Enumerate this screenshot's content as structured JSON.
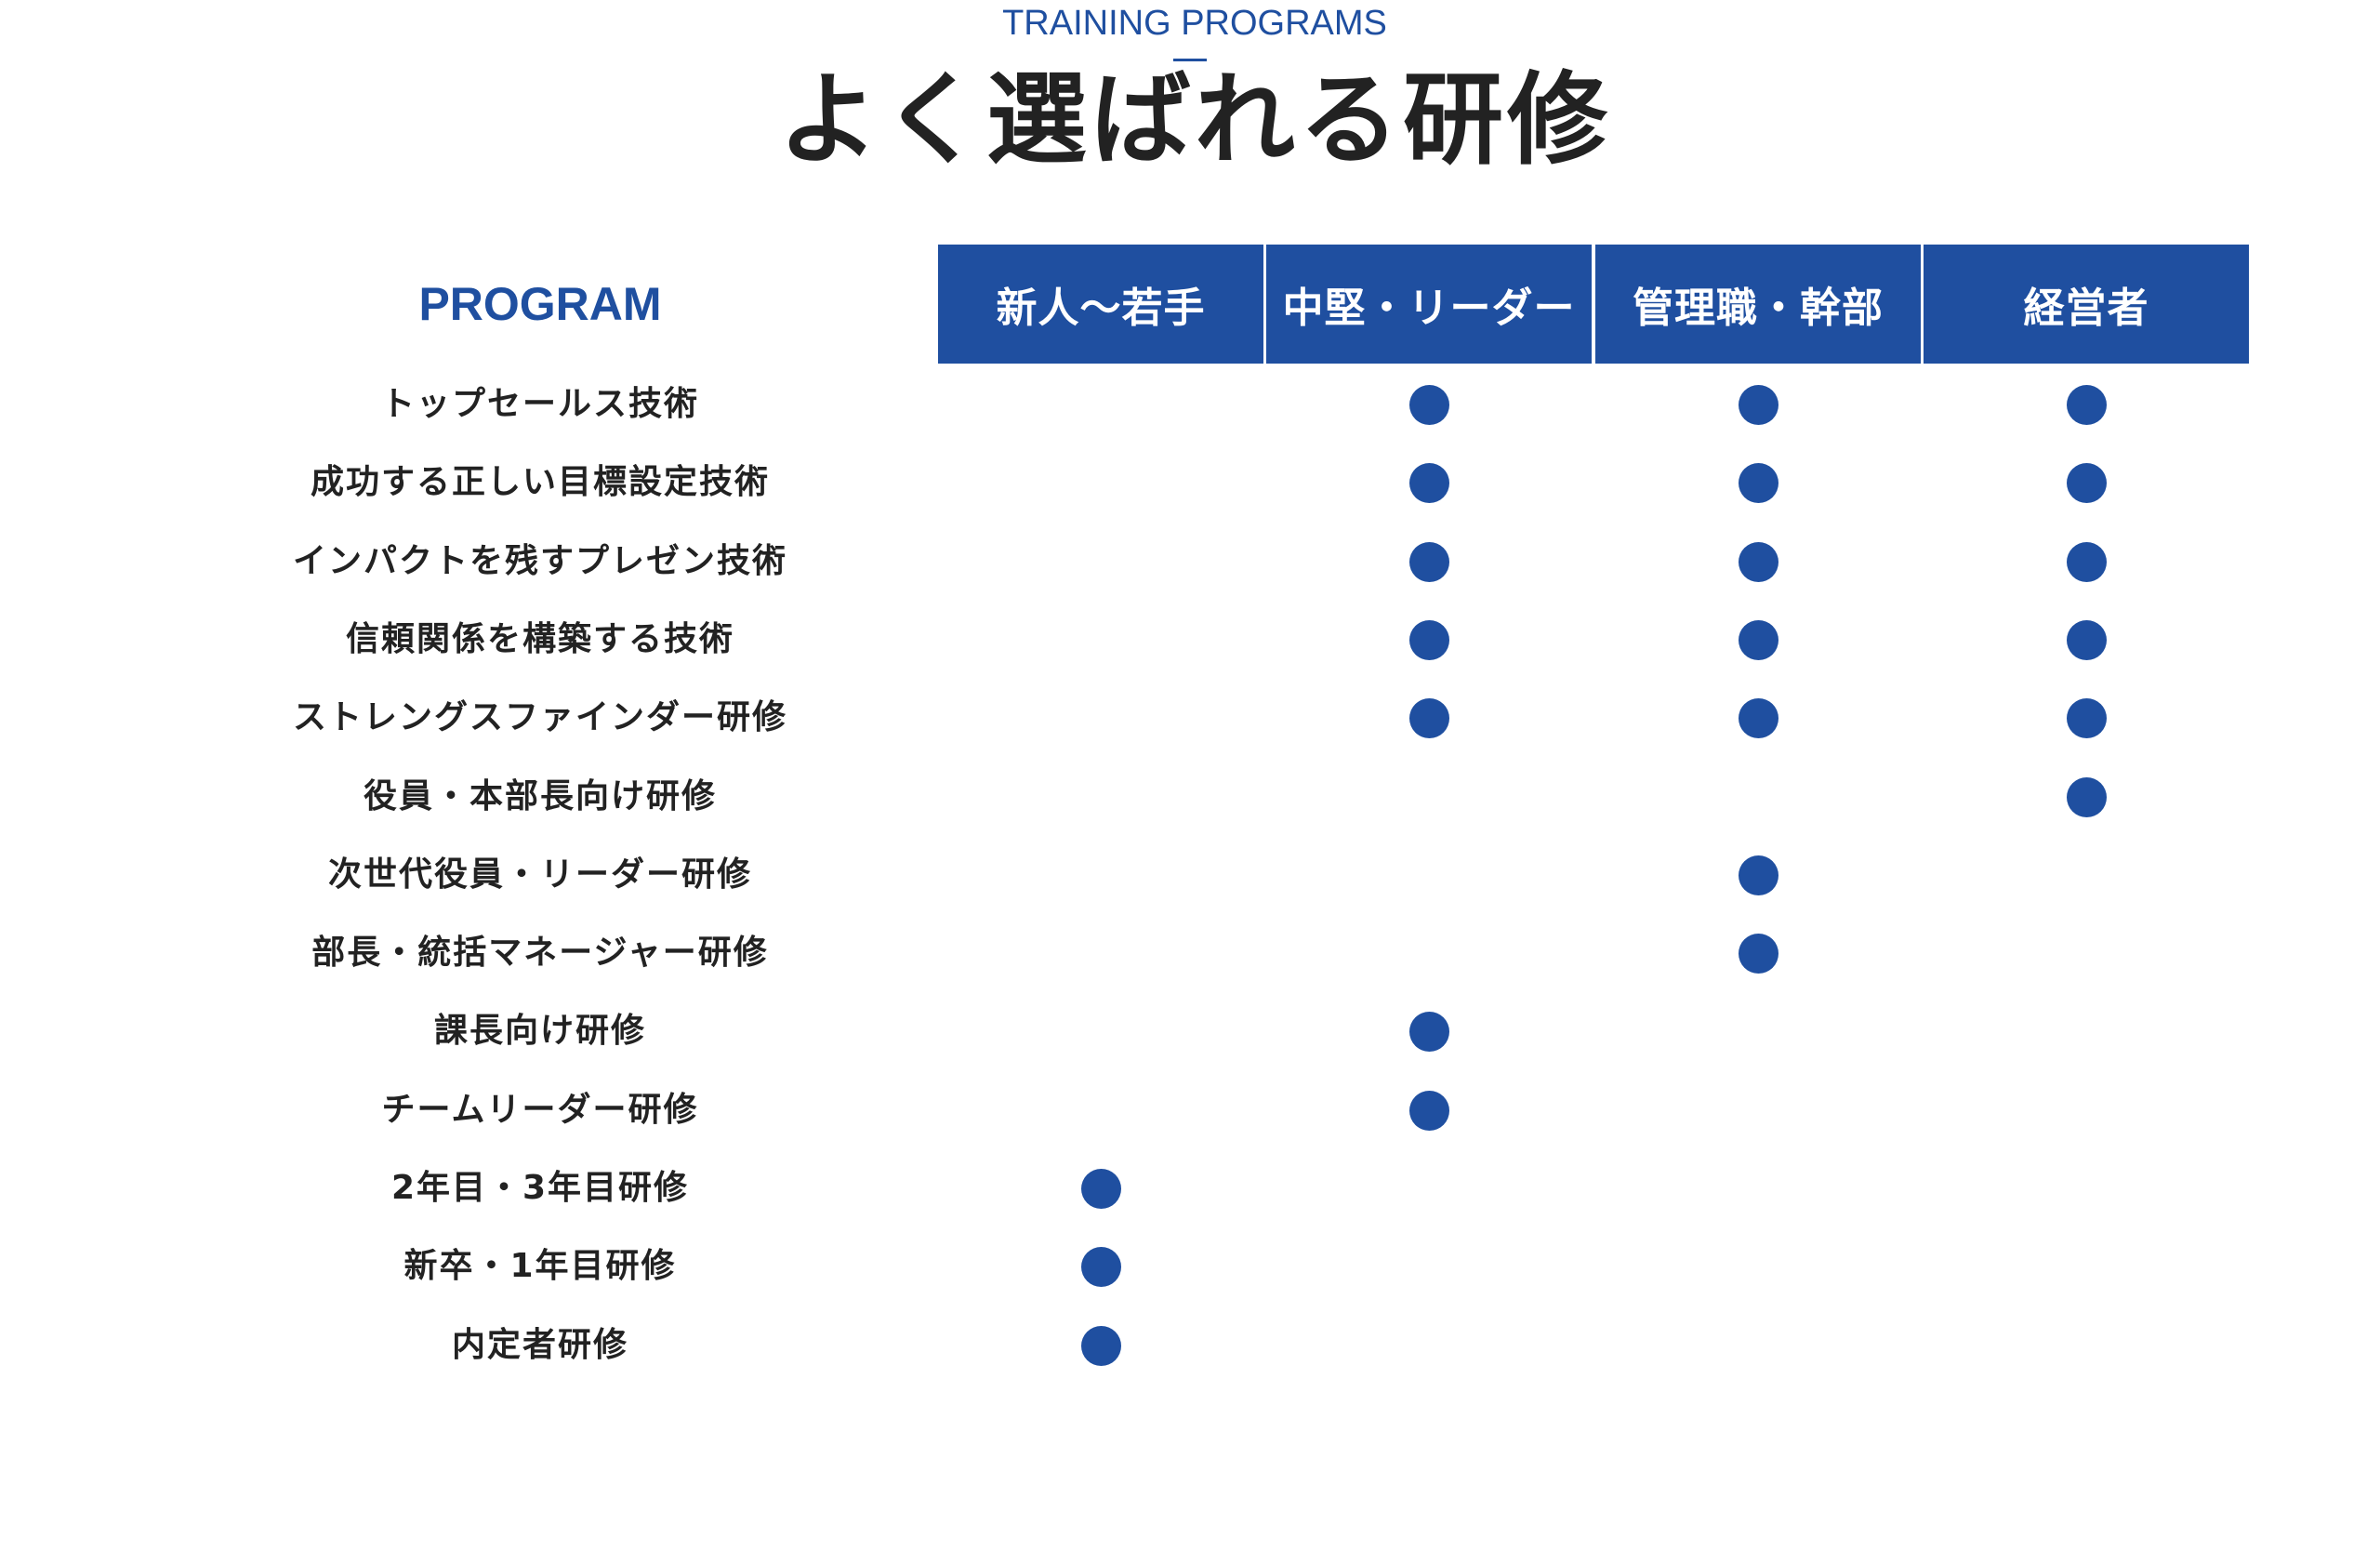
{
  "header": {
    "eyebrow": "TRAINING PROGRAMS",
    "title": "よく選ばれる研修"
  },
  "table": {
    "program_label": "PROGRAM",
    "accent_color": "#1f4fa0",
    "columns": [
      "新人〜若手",
      "中堅・リーダー",
      "管理職・幹部",
      "経営者"
    ],
    "rows": [
      {
        "label": "トップセールス技術",
        "marks": [
          false,
          true,
          true,
          true
        ]
      },
      {
        "label": "成功する正しい目標設定技術",
        "marks": [
          false,
          true,
          true,
          true
        ]
      },
      {
        "label": "インパクトを残すプレゼン技術",
        "marks": [
          false,
          true,
          true,
          true
        ]
      },
      {
        "label": "信頼関係を構築する技術",
        "marks": [
          false,
          true,
          true,
          true
        ]
      },
      {
        "label": "ストレングスファインダー研修",
        "marks": [
          false,
          true,
          true,
          true
        ]
      },
      {
        "label": "役員・本部長向け研修",
        "marks": [
          false,
          false,
          false,
          true
        ]
      },
      {
        "label": "次世代役員・リーダー研修",
        "marks": [
          false,
          false,
          true,
          false
        ]
      },
      {
        "label": "部長・統括マネージャー研修",
        "marks": [
          false,
          false,
          true,
          false
        ]
      },
      {
        "label": "課長向け研修",
        "marks": [
          false,
          true,
          false,
          false
        ]
      },
      {
        "label": "チームリーダー研修",
        "marks": [
          false,
          true,
          false,
          false
        ]
      },
      {
        "label": "2年目・3年目研修",
        "marks": [
          true,
          false,
          false,
          false
        ]
      },
      {
        "label": "新卒・1年目研修",
        "marks": [
          true,
          false,
          false,
          false
        ]
      },
      {
        "label": "内定者研修",
        "marks": [
          true,
          false,
          false,
          false
        ]
      }
    ]
  }
}
